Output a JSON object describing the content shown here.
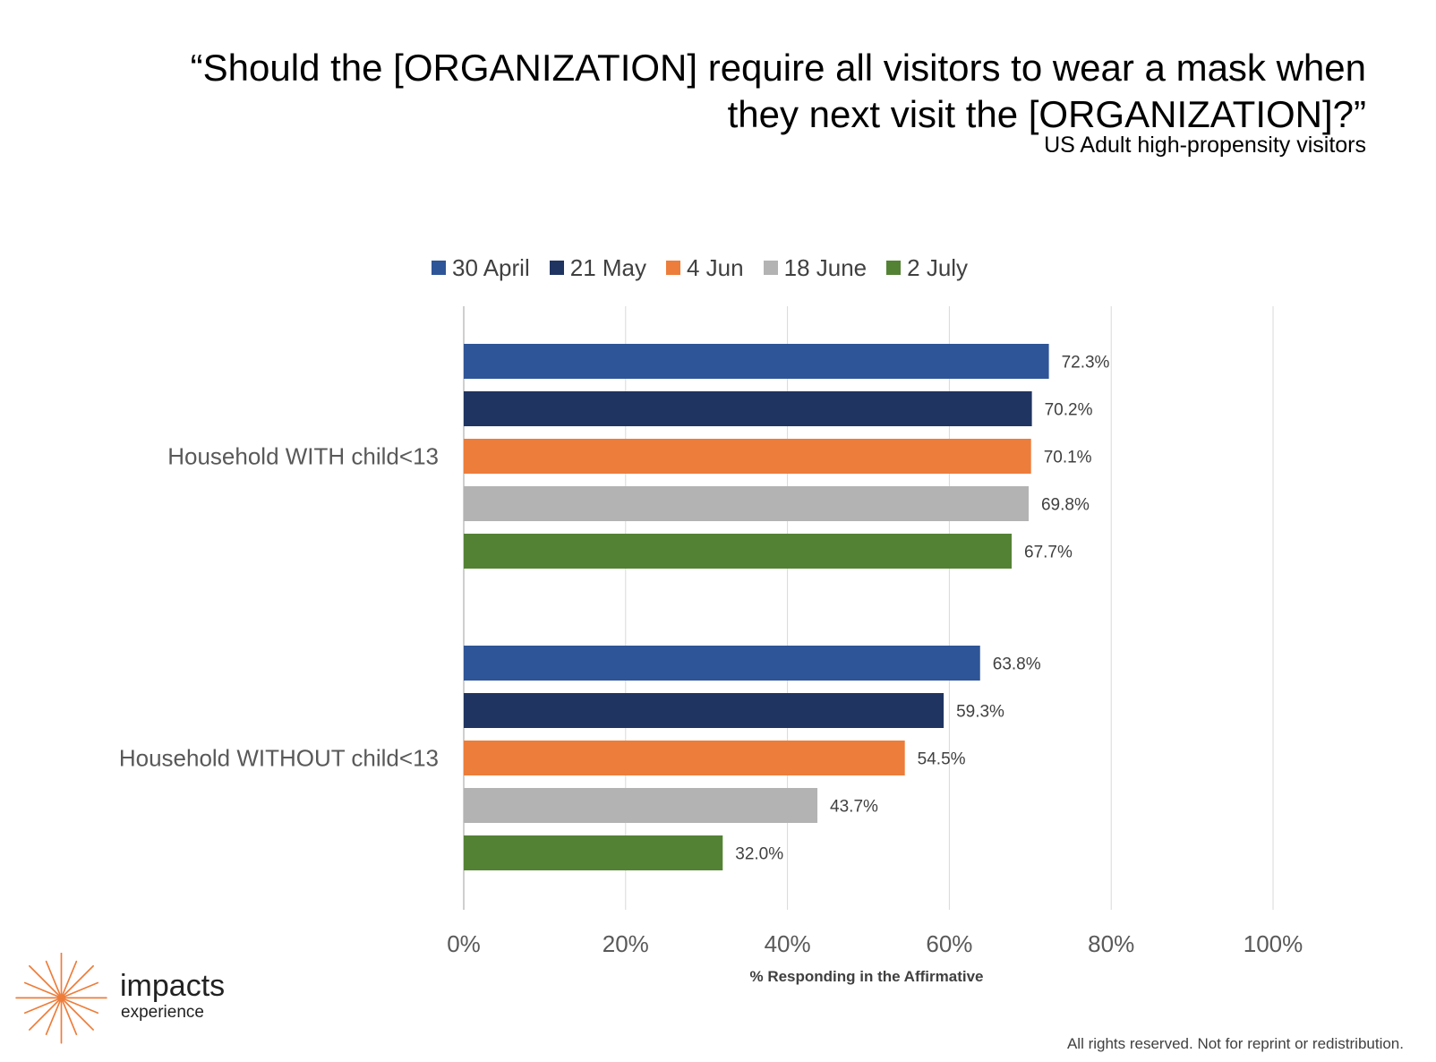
{
  "header": {
    "title_line1": "“Should the [ORGANIZATION] require all visitors to wear a mask when",
    "title_line2": "they next visit the [ORGANIZATION]?”",
    "subtitle": "US Adult high-propensity visitors"
  },
  "chart_data": {
    "type": "bar",
    "orientation": "horizontal",
    "categories": [
      "Household WITH child<13",
      "Household WITHOUT child<13"
    ],
    "series": [
      {
        "name": "30 April",
        "color": "#2E5597",
        "values": [
          72.3,
          63.8
        ],
        "labels": [
          "72.3%",
          "63.8%"
        ]
      },
      {
        "name": "21 May",
        "color": "#1F3461",
        "values": [
          70.2,
          59.3
        ],
        "labels": [
          "70.2%",
          "59.3%"
        ]
      },
      {
        "name": "4 Jun",
        "color": "#ED7D3A",
        "values": [
          70.1,
          54.5
        ],
        "labels": [
          "70.1%",
          "54.5%"
        ]
      },
      {
        "name": "18 June",
        "color": "#B3B3B3",
        "values": [
          69.8,
          43.7
        ],
        "labels": [
          "69.8%",
          "43.7%"
        ]
      },
      {
        "name": "2 July",
        "color": "#548235",
        "values": [
          67.7,
          32.0
        ],
        "labels": [
          "67.7%",
          "32.0%"
        ]
      }
    ],
    "xlim": [
      0,
      100
    ],
    "xticks": [
      0,
      20,
      40,
      60,
      80,
      100
    ],
    "xtick_labels": [
      "0%",
      "20%",
      "40%",
      "60%",
      "80%",
      "100%"
    ],
    "xlabel": "% Responding in the Affirmative",
    "grid": true,
    "legend_position": "top"
  },
  "branding": {
    "name": "impacts",
    "sub": "experience",
    "logo_icon": "starburst-icon",
    "logo_color": "#ED7D3A"
  },
  "footer": {
    "text": "All rights reserved. Not for reprint or redistribution."
  }
}
